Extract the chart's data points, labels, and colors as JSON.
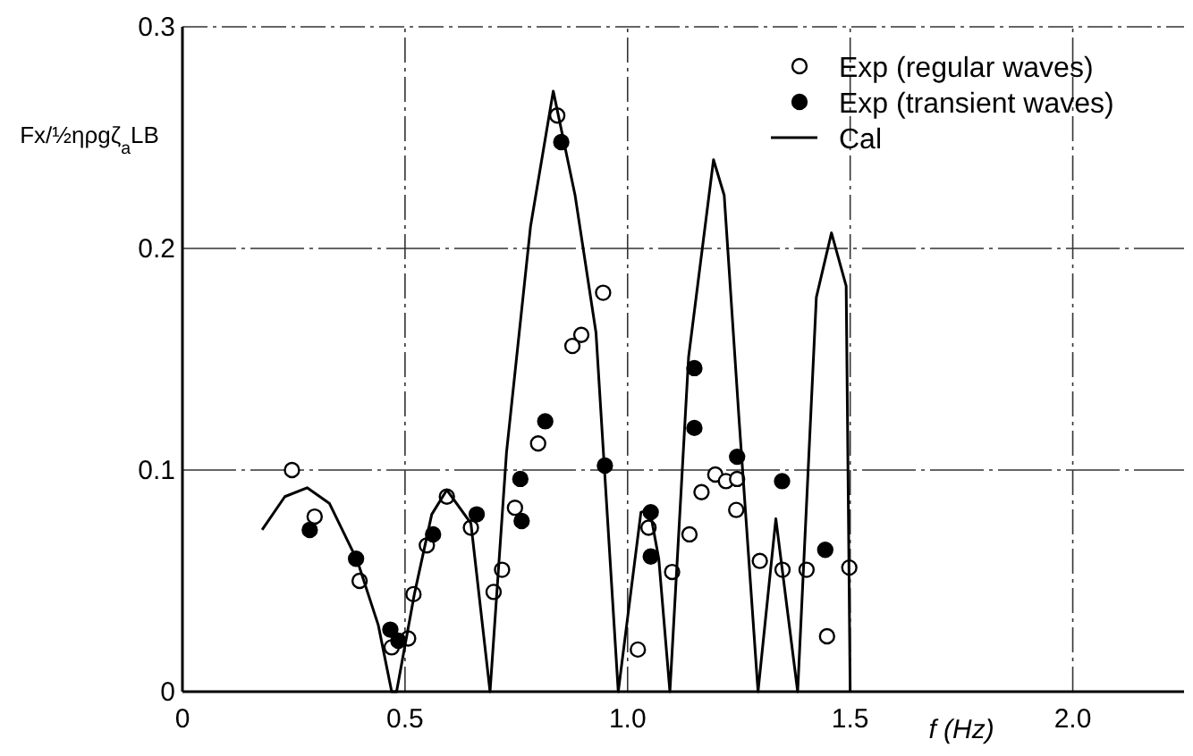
{
  "chart_data": {
    "type": "scatter",
    "xlabel": "f (Hz)",
    "ylabel": "Fx/½ηρgζ$_{a}$LB",
    "xlim": [
      0,
      2.25
    ],
    "ylim": [
      0,
      0.3
    ],
    "xticks": [
      0,
      {
        "value": 0.5,
        "label": "0.5"
      },
      {
        "value": 1,
        "label": "1.0"
      },
      {
        "value": 1.5,
        "label": "1.5"
      },
      {
        "value": 2,
        "label": "2.0"
      }
    ],
    "yticks": [
      0,
      0.1,
      0.2,
      0.3
    ],
    "grid": true,
    "legend": "top right",
    "marker": "circle",
    "series": [
      {
        "name": "Exp (regular waves)",
        "color": "#ffffff",
        "x": [
          0.246,
          0.297,
          0.398,
          0.47,
          0.507,
          0.519,
          0.549,
          0.594,
          0.648,
          0.699,
          0.718,
          0.747,
          0.799,
          0.842,
          0.876,
          0.896,
          0.945,
          1.023,
          1.047,
          1.1,
          1.139,
          1.166,
          1.197,
          1.221,
          1.246,
          1.244,
          1.297,
          1.348,
          1.402,
          1.448,
          1.498
        ],
        "values": [
          0.1,
          0.079,
          0.05,
          0.02,
          0.024,
          0.044,
          0.066,
          0.088,
          0.074,
          0.045,
          0.055,
          0.083,
          0.112,
          0.26,
          0.156,
          0.161,
          0.18,
          0.019,
          0.074,
          0.054,
          0.071,
          0.09,
          0.098,
          0.095,
          0.096,
          0.082,
          0.059,
          0.055,
          0.055,
          0.025,
          0.056
        ]
      },
      {
        "name": "Exp (transient waves)",
        "color": "#000000",
        "x": [
          0.286,
          0.39,
          0.467,
          0.485,
          0.563,
          0.661,
          0.759,
          0.762,
          0.815,
          0.851,
          0.949,
          1.052,
          1.052,
          1.15,
          1.15,
          1.246,
          1.347,
          1.444
        ],
        "values": [
          0.073,
          0.06,
          0.028,
          0.023,
          0.071,
          0.08,
          0.096,
          0.077,
          0.122,
          0.248,
          0.102,
          0.081,
          0.061,
          0.146,
          0.119,
          0.106,
          0.095,
          0.064
        ]
      },
      {
        "name": "Cal",
        "type": "line",
        "marker": "none",
        "color": "#000000",
        "x": [
          0.179,
          0.23,
          0.28,
          0.33,
          0.393,
          0.44,
          0.47,
          0.481,
          0.521,
          0.56,
          0.594,
          0.648,
          0.691,
          0.728,
          0.782,
          0.833,
          0.882,
          0.929,
          0.979,
          1.03,
          1.05,
          1.07,
          1.095,
          1.137,
          1.193,
          1.217,
          1.25,
          1.293,
          1.333,
          1.382,
          1.424,
          1.458,
          1.491,
          1.5
        ],
        "values": [
          0.073,
          0.088,
          0.092,
          0.085,
          0.059,
          0.03,
          0,
          0,
          0.044,
          0.08,
          0.091,
          0.076,
          0,
          0.108,
          0.21,
          0.271,
          0.224,
          0.162,
          0,
          0.081,
          0.082,
          0.06,
          0,
          0.151,
          0.24,
          0.224,
          0.124,
          0,
          0.078,
          0,
          0.178,
          0.207,
          0.183,
          0
        ]
      }
    ]
  }
}
